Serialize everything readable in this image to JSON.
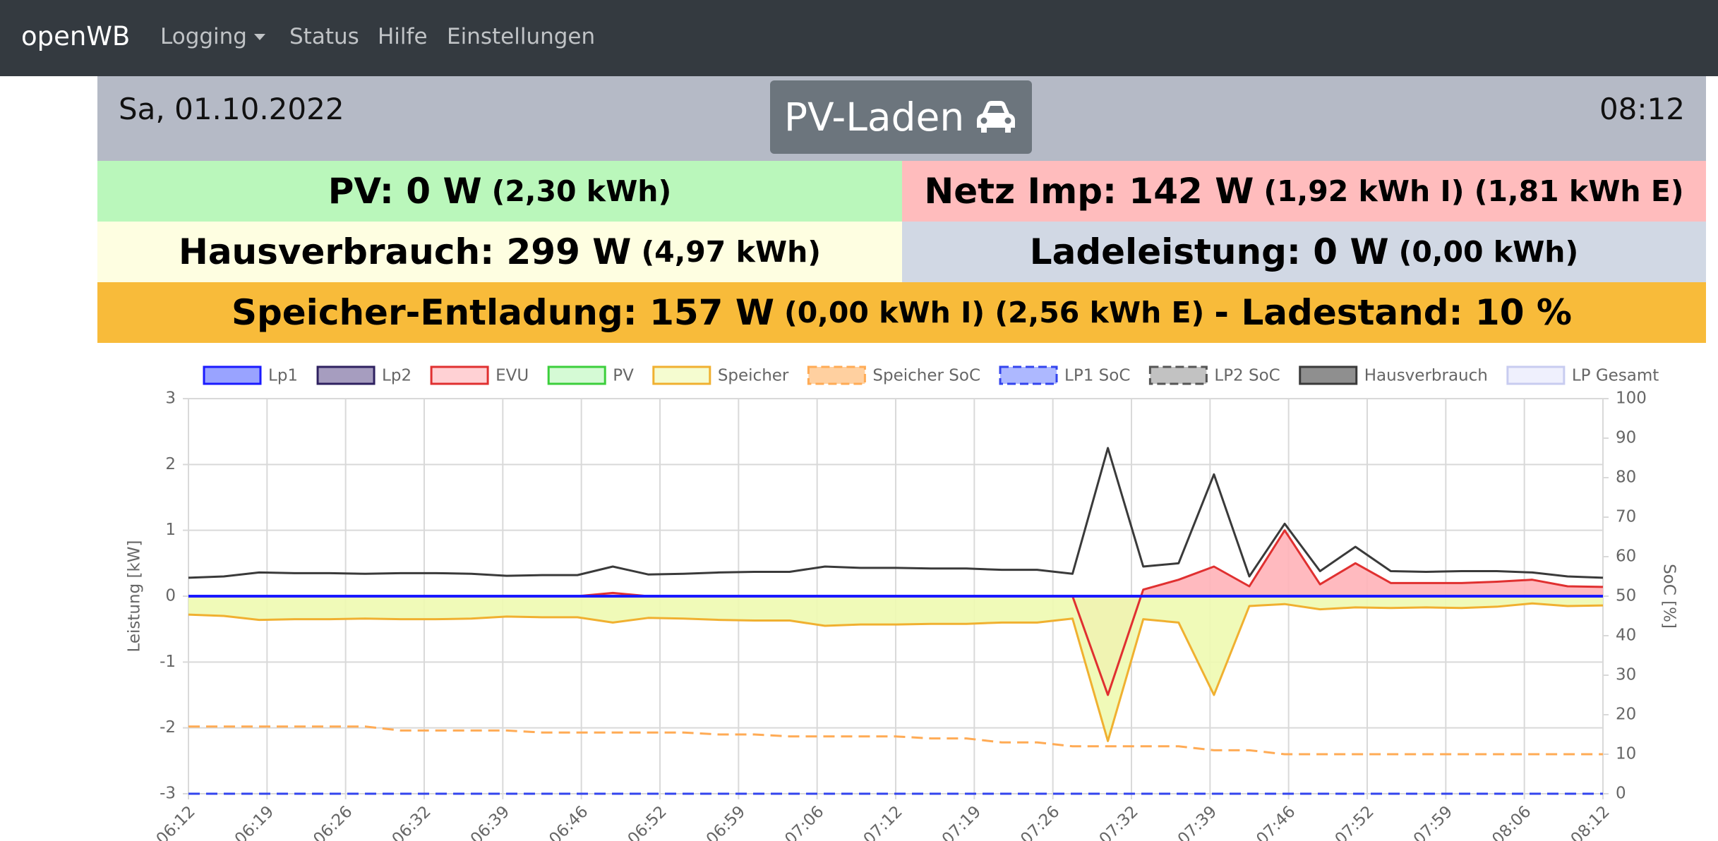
{
  "navbar": {
    "brand": "openWB",
    "links": [
      "Logging",
      "Status",
      "Hilfe",
      "Einstellungen"
    ]
  },
  "header": {
    "date": "Sa, 01.10.2022",
    "mode": "PV-Laden",
    "time": "08:12"
  },
  "status": {
    "pv": {
      "main": "PV: 0 W",
      "detail": "(2,30 kWh)"
    },
    "netz": {
      "main": "Netz Imp: 142 W",
      "detail": "(1,92 kWh I) (1,81 kWh E)"
    },
    "haus": {
      "main": "Hausverbrauch: 299 W",
      "detail": "(4,97 kWh)"
    },
    "lade": {
      "main": "Ladeleistung: 0 W",
      "detail": "(0,00 kWh)"
    },
    "speicher": {
      "main": "Speicher-Entladung: 157 W",
      "detail": "(0,00 kWh I) (2,56 kWh E)",
      "soc": "- Ladestand: 10 %"
    }
  },
  "chart_data": {
    "type": "line",
    "ylabel": "Leistung [kW]",
    "y2label": "SoC [%]",
    "grid": true,
    "ylim": [
      -3,
      3
    ],
    "yticks": [
      -3,
      -2,
      -1,
      0,
      1,
      2,
      3
    ],
    "y2lim": [
      0,
      100
    ],
    "y2ticks": [
      0,
      10,
      20,
      30,
      40,
      50,
      60,
      70,
      80,
      90,
      100
    ],
    "xticks": [
      "06:12",
      "06:19",
      "06:26",
      "06:32",
      "06:39",
      "06:46",
      "06:52",
      "06:59",
      "07:06",
      "07:12",
      "07:19",
      "07:26",
      "07:32",
      "07:39",
      "07:46",
      "07:52",
      "07:59",
      "08:06",
      "08:12"
    ],
    "x": [
      "06:12",
      "06:15",
      "06:18",
      "06:21",
      "06:24",
      "06:27",
      "06:30",
      "06:33",
      "06:36",
      "06:39",
      "06:42",
      "06:45",
      "06:48",
      "06:51",
      "06:54",
      "06:57",
      "07:00",
      "07:03",
      "07:06",
      "07:09",
      "07:12",
      "07:15",
      "07:18",
      "07:21",
      "07:24",
      "07:27",
      "07:30",
      "07:33",
      "07:36",
      "07:39",
      "07:42",
      "07:45",
      "07:48",
      "07:51",
      "07:54",
      "07:57",
      "08:00",
      "08:03",
      "08:06",
      "08:09",
      "08:12"
    ],
    "series": [
      {
        "name": "Lp1",
        "color": "#1a1aff",
        "fill": "#5566ff",
        "values": [
          0,
          0,
          0,
          0,
          0,
          0,
          0,
          0,
          0,
          0,
          0,
          0,
          0,
          0,
          0,
          0,
          0,
          0,
          0,
          0,
          0,
          0,
          0,
          0,
          0,
          0,
          0,
          0,
          0,
          0,
          0,
          0,
          0,
          0,
          0,
          0,
          0,
          0,
          0,
          0,
          0
        ]
      },
      {
        "name": "Lp2",
        "color": "#2e2160",
        "fill": "#6a5b95",
        "values": [
          0,
          0,
          0,
          0,
          0,
          0,
          0,
          0,
          0,
          0,
          0,
          0,
          0,
          0,
          0,
          0,
          0,
          0,
          0,
          0,
          0,
          0,
          0,
          0,
          0,
          0,
          0,
          0,
          0,
          0,
          0,
          0,
          0,
          0,
          0,
          0,
          0,
          0,
          0,
          0,
          0
        ]
      },
      {
        "name": "EVU",
        "color": "#e03030",
        "fill": "#ffb3b8",
        "area": true,
        "values": [
          0,
          0,
          0,
          0,
          0,
          0,
          0,
          0,
          0,
          0,
          0,
          0,
          0.05,
          0,
          0,
          0,
          0,
          0,
          0,
          0,
          0,
          0,
          0,
          0,
          0,
          0,
          -1.5,
          0.1,
          0.25,
          0.45,
          0.15,
          1.0,
          0.18,
          0.5,
          0.2,
          0.2,
          0.2,
          0.22,
          0.25,
          0.15,
          0.14
        ]
      },
      {
        "name": "PV",
        "color": "#3ccf3c",
        "fill": "#b9f6b9",
        "values": [
          0,
          0,
          0,
          0,
          0,
          0,
          0,
          0,
          0,
          0,
          0,
          0,
          0,
          0,
          0,
          0,
          0,
          0,
          0,
          0,
          0,
          0,
          0,
          0,
          0,
          0,
          0,
          0,
          0,
          0,
          0,
          0,
          0,
          0,
          0,
          0,
          0,
          0,
          0,
          0,
          0
        ]
      },
      {
        "name": "Speicher",
        "color": "#f0b030",
        "fill": "#eefab0",
        "area": true,
        "values": [
          -0.28,
          -0.3,
          -0.36,
          -0.35,
          -0.35,
          -0.34,
          -0.35,
          -0.35,
          -0.34,
          -0.31,
          -0.32,
          -0.32,
          -0.4,
          -0.33,
          -0.34,
          -0.36,
          -0.37,
          -0.37,
          -0.45,
          -0.43,
          -0.43,
          -0.42,
          -0.42,
          -0.4,
          -0.4,
          -0.34,
          -2.2,
          -0.35,
          -0.4,
          -1.5,
          -0.15,
          -0.12,
          -0.2,
          -0.17,
          -0.18,
          -0.17,
          -0.18,
          -0.16,
          -0.11,
          -0.15,
          -0.14
        ]
      },
      {
        "name": "Speicher SoC",
        "color": "#ffab55",
        "fill": "#ffb060",
        "dash": true,
        "axis": "y2",
        "values": [
          17,
          17,
          17,
          17,
          17,
          17,
          16,
          16,
          16,
          16,
          15.5,
          15.5,
          15.5,
          15.5,
          15.5,
          15,
          15,
          14.5,
          14.5,
          14.5,
          14.5,
          14,
          14,
          13,
          13,
          12,
          12,
          12,
          12,
          11,
          11,
          10,
          10,
          10,
          10,
          10,
          10,
          10,
          10,
          10,
          10
        ]
      },
      {
        "name": "LP1 SoC",
        "color": "#3344ee",
        "fill": "#7788ff",
        "dash": true,
        "axis": "y2",
        "values": [
          0,
          0,
          0,
          0,
          0,
          0,
          0,
          0,
          0,
          0,
          0,
          0,
          0,
          0,
          0,
          0,
          0,
          0,
          0,
          0,
          0,
          0,
          0,
          0,
          0,
          0,
          0,
          0,
          0,
          0,
          0,
          0,
          0,
          0,
          0,
          0,
          0,
          0,
          0,
          0,
          0
        ]
      },
      {
        "name": "LP2 SoC",
        "color": "#555555",
        "fill": "#999999",
        "dash": true,
        "axis": "y2",
        "values": [
          0,
          0,
          0,
          0,
          0,
          0,
          0,
          0,
          0,
          0,
          0,
          0,
          0,
          0,
          0,
          0,
          0,
          0,
          0,
          0,
          0,
          0,
          0,
          0,
          0,
          0,
          0,
          0,
          0,
          0,
          0,
          0,
          0,
          0,
          0,
          0,
          0,
          0,
          0,
          0,
          0
        ]
      },
      {
        "name": "Hausverbrauch",
        "color": "#3a3a3a",
        "fill": "#444444",
        "values": [
          0.28,
          0.3,
          0.36,
          0.35,
          0.35,
          0.34,
          0.35,
          0.35,
          0.34,
          0.31,
          0.32,
          0.32,
          0.45,
          0.33,
          0.34,
          0.36,
          0.37,
          0.37,
          0.45,
          0.43,
          0.43,
          0.42,
          0.42,
          0.4,
          0.4,
          0.34,
          2.25,
          0.45,
          0.5,
          1.85,
          0.3,
          1.1,
          0.38,
          0.75,
          0.38,
          0.37,
          0.38,
          0.38,
          0.36,
          0.3,
          0.28
        ]
      },
      {
        "name": "LP Gesamt",
        "color": "#c8ccf0",
        "fill": "#e4e6fb",
        "values": [
          0,
          0,
          0,
          0,
          0,
          0,
          0,
          0,
          0,
          0,
          0,
          0,
          0,
          0,
          0,
          0,
          0,
          0,
          0,
          0,
          0,
          0,
          0,
          0,
          0,
          0,
          0,
          0,
          0,
          0,
          0,
          0,
          0,
          0,
          0,
          0,
          0,
          0,
          0,
          0,
          0
        ]
      }
    ]
  }
}
